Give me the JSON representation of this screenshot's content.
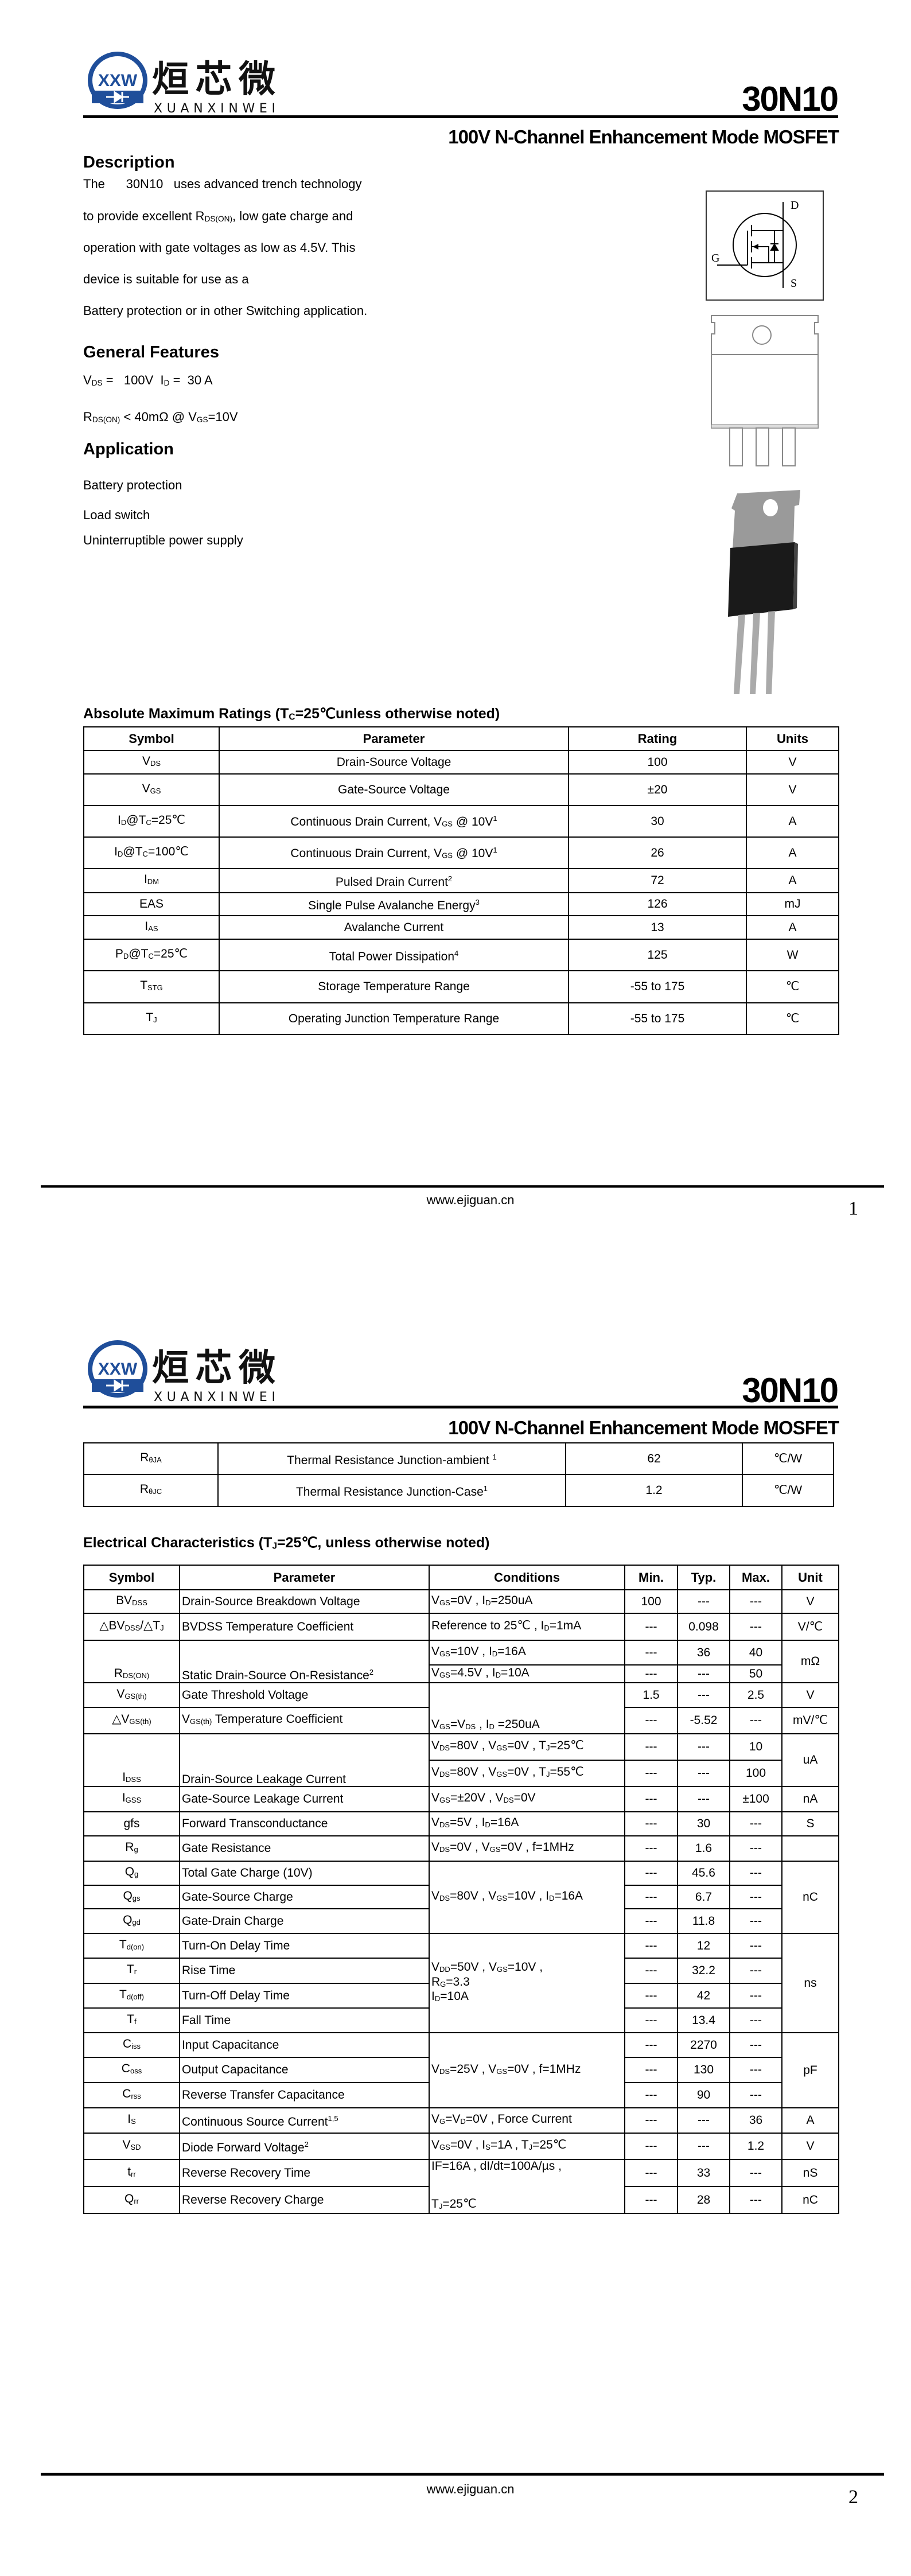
{
  "logo": {
    "mark": "XXW",
    "cn": "烜芯微",
    "en": "XUANXINWEI",
    "ring_color": "#1f4e9a",
    "accent_color": "#5bb030"
  },
  "header": {
    "part_number": "30N10",
    "subtitle": "100V N-Channel Enhancement Mode MOSFET"
  },
  "description": {
    "heading": "Description",
    "lines": [
      "The      30N10   uses advanced trench technology",
      [
        "to provide excellent R",
        {
          "sub": "DS(ON)"
        },
        ", low gate charge and"
      ],
      "operation with gate voltages as low as 4.5V. This",
      "device is suitable for use as a",
      "Battery protection or in other Switching application."
    ]
  },
  "features": {
    "heading": "General Features",
    "lines": [
      [
        "V",
        {
          "sub": "DS"
        },
        " =   100V  I",
        {
          "sub": "D"
        },
        " =  30 A"
      ],
      [
        "R",
        {
          "sub": "DS(ON)"
        },
        " < 40mΩ @ V",
        {
          "sub": "GS"
        },
        "=10V"
      ]
    ]
  },
  "application": {
    "heading": "Application",
    "items": [
      "Battery protection",
      "Load switch",
      "Uninterruptible power supply"
    ]
  },
  "schematic": {
    "drain": "D",
    "gate": "G",
    "source": "S"
  },
  "abs_max": {
    "title": [
      "Absolute Maximum Ratings (T",
      {
        "sub": "C"
      },
      "=25℃unless otherwise noted)"
    ],
    "headers": [
      "Symbol",
      "Parameter",
      "Rating",
      "Units"
    ],
    "rows": [
      [
        [
          "V",
          {
            "sub": "DS"
          }
        ],
        "Drain-Source Voltage",
        "100",
        "V"
      ],
      [
        [
          "V",
          {
            "sub": "GS"
          }
        ],
        "Gate-Source Voltage",
        "±20",
        "V"
      ],
      [
        [
          "I",
          {
            "sub": "D"
          },
          "@T",
          {
            "sub": "C"
          },
          "=25℃"
        ],
        [
          "Continuous Drain Current, V",
          {
            "sub": "GS"
          },
          " @ 10V",
          {
            "sup": "1"
          }
        ],
        "30",
        "A"
      ],
      [
        [
          "I",
          {
            "sub": "D"
          },
          "@T",
          {
            "sub": "C"
          },
          "=100℃"
        ],
        [
          "Continuous Drain Current, V",
          {
            "sub": "GS"
          },
          " @ 10V",
          {
            "sup": "1"
          }
        ],
        "26",
        "A"
      ],
      [
        [
          "I",
          {
            "sub": "DM"
          }
        ],
        [
          "Pulsed Drain Current",
          {
            "sup": "2"
          }
        ],
        "72",
        "A"
      ],
      [
        "EAS",
        [
          "Single Pulse Avalanche Energy",
          {
            "sup": "3"
          }
        ],
        "126",
        "mJ"
      ],
      [
        [
          "I",
          {
            "sub": "AS"
          }
        ],
        "Avalanche Current",
        "13",
        "A"
      ],
      [
        [
          "P",
          {
            "sub": "D"
          },
          "@T",
          {
            "sub": "C"
          },
          "=25℃"
        ],
        [
          "Total Power Dissipation",
          {
            "sup": "4"
          }
        ],
        "125",
        "W"
      ],
      [
        [
          "T",
          {
            "sub": "STG"
          }
        ],
        "Storage Temperature Range",
        "-55 to 175",
        "℃"
      ],
      [
        [
          "T",
          {
            "sub": "J"
          }
        ],
        "Operating Junction Temperature Range",
        "-55 to 175",
        "℃"
      ]
    ]
  },
  "thermal": {
    "rows": [
      [
        [
          "R",
          {
            "sub": "θJA"
          }
        ],
        [
          "Thermal Resistance Junction-ambient ",
          {
            "sup": "1"
          }
        ],
        "62",
        "℃/W"
      ],
      [
        [
          "R",
          {
            "sub": "θJC"
          }
        ],
        [
          "Thermal Resistance Junction-Case",
          {
            "sup": "1"
          }
        ],
        "1.2",
        "℃/W"
      ]
    ]
  },
  "electrical": {
    "title": [
      "Electrical Characteristics (T",
      {
        "sub": "J"
      },
      "=25℃, unless otherwise noted)"
    ],
    "headers": [
      "Symbol",
      "Parameter",
      "Conditions",
      "Min.",
      "Typ.",
      "Max.",
      "Unit"
    ],
    "rows": [
      {
        "sym": [
          "BV",
          {
            "sub": "DSS"
          }
        ],
        "param": "Drain-Source Breakdown Voltage",
        "cond": [
          "V",
          {
            "sub": "GS"
          },
          "=0V , I",
          {
            "sub": "D"
          },
          "=250uA"
        ],
        "min": "100",
        "typ": "---",
        "max": "---",
        "unit": "V"
      },
      {
        "sym": [
          "△BV",
          {
            "sub": "DSS"
          },
          "/△T",
          {
            "sub": "J"
          }
        ],
        "param": "BVDSS Temperature Coefficient",
        "cond": [
          "Reference to 25℃ , I",
          {
            "sub": "D"
          },
          "=1mA"
        ],
        "min": "---",
        "typ": "0.098",
        "max": "---",
        "unit": "V/℃"
      },
      {
        "sym": [
          "R",
          {
            "sub": "DS(ON)"
          }
        ],
        "sym_span": 2,
        "param": [
          "Static Drain-Source On-Resistance",
          {
            "sup": "2"
          }
        ],
        "param_span": 2,
        "cond": [
          "V",
          {
            "sub": "GS"
          },
          "=10V , I",
          {
            "sub": "D"
          },
          "=16A"
        ],
        "min": "---",
        "typ": "36",
        "max": "40",
        "unit": "mΩ",
        "unit_span": 2
      },
      {
        "cond": [
          "V",
          {
            "sub": "GS"
          },
          "=4.5V , I",
          {
            "sub": "D"
          },
          "=10A"
        ],
        "min": "---",
        "typ": "---",
        "max": "50"
      },
      {
        "sym": [
          "V",
          {
            "sub": "GS(th)"
          }
        ],
        "param": "Gate Threshold Voltage",
        "cond": [
          "V",
          {
            "sub": "GS"
          },
          "=V",
          {
            "sub": "DS"
          },
          " , I",
          {
            "sub": "D"
          },
          " =250uA"
        ],
        "cond_span": 2,
        "min": "1.5",
        "typ": "---",
        "max": "2.5",
        "unit": "V"
      },
      {
        "sym": [
          "△V",
          {
            "sub": "GS(th)"
          }
        ],
        "param": [
          "V",
          {
            "sub": "GS(th)"
          },
          " Temperature Coefficient"
        ],
        "min": "---",
        "typ": "-5.52",
        "max": "---",
        "unit": "mV/℃"
      },
      {
        "sym": [
          "I",
          {
            "sub": "DSS"
          }
        ],
        "sym_span": 2,
        "param": "Drain-Source Leakage Current",
        "param_span": 2,
        "cond": [
          "V",
          {
            "sub": "DS"
          },
          "=80V , V",
          {
            "sub": "GS"
          },
          "=0V , T",
          {
            "sub": "J"
          },
          "=25℃"
        ],
        "min": "---",
        "typ": "---",
        "max": "10",
        "unit": "uA",
        "unit_span": 2
      },
      {
        "cond": [
          "V",
          {
            "sub": "DS"
          },
          "=80V , V",
          {
            "sub": "GS"
          },
          "=0V , T",
          {
            "sub": "J"
          },
          "=55℃"
        ],
        "min": "---",
        "typ": "---",
        "max": "100"
      },
      {
        "sym": [
          "I",
          {
            "sub": "GSS"
          }
        ],
        "param": "Gate-Source Leakage Current",
        "cond": [
          "V",
          {
            "sub": "GS"
          },
          "=±20V , V",
          {
            "sub": "DS"
          },
          "=0V"
        ],
        "min": "---",
        "typ": "---",
        "max": "±100",
        "unit": "nA"
      },
      {
        "sym": "gfs",
        "param": "Forward Transconductance",
        "cond": [
          "V",
          {
            "sub": "DS"
          },
          "=5V , I",
          {
            "sub": "D"
          },
          "=16A"
        ],
        "min": "---",
        "typ": "30",
        "max": "---",
        "unit": "S"
      },
      {
        "sym": [
          "R",
          {
            "sub": "g"
          }
        ],
        "param": "Gate Resistance",
        "cond": [
          "V",
          {
            "sub": "DS"
          },
          "=0V , V",
          {
            "sub": "GS"
          },
          "=0V , f=1MHz"
        ],
        "min": "---",
        "typ": "1.6",
        "max": "---",
        "unit": ""
      },
      {
        "sym": [
          "Q",
          {
            "sub": "g"
          }
        ],
        "param": "Total Gate Charge (10V)",
        "cond": [
          "V",
          {
            "sub": "DS"
          },
          "=80V , V",
          {
            "sub": "GS"
          },
          "=10V , I",
          {
            "sub": "D"
          },
          "=16A"
        ],
        "cond_span": 3,
        "min": "---",
        "typ": "45.6",
        "max": "---",
        "unit": "nC",
        "unit_span": 3
      },
      {
        "sym": [
          "Q",
          {
            "sub": "gs"
          }
        ],
        "param": "Gate-Source Charge",
        "min": "---",
        "typ": "6.7",
        "max": "---"
      },
      {
        "sym": [
          "Q",
          {
            "sub": "gd"
          }
        ],
        "param": "Gate-Drain Charge",
        "min": "---",
        "typ": "11.8",
        "max": "---"
      },
      {
        "sym": [
          "T",
          {
            "sub": "d(on)"
          }
        ],
        "param": "Turn-On Delay Time",
        "cond": [
          "V",
          {
            "sub": "DD"
          },
          "=50V , V",
          {
            "sub": "GS"
          },
          "=10V ,\nR",
          {
            "sub": "G"
          },
          "=3.3\nI",
          {
            "sub": "D"
          },
          "=10A"
        ],
        "cond_span": 4,
        "min": "---",
        "typ": "12",
        "max": "---",
        "unit": "ns",
        "unit_span": 4
      },
      {
        "sym": [
          "T",
          {
            "sub": "r"
          }
        ],
        "param": "Rise Time",
        "min": "---",
        "typ": "32.2",
        "max": "---"
      },
      {
        "sym": [
          "T",
          {
            "sub": "d(off)"
          }
        ],
        "param": "Turn-Off Delay Time",
        "min": "---",
        "typ": "42",
        "max": "---"
      },
      {
        "sym": [
          "T",
          {
            "sub": "f"
          }
        ],
        "param": "Fall Time",
        "min": "---",
        "typ": "13.4",
        "max": "---"
      },
      {
        "sym": [
          "C",
          {
            "sub": "iss"
          }
        ],
        "param": "Input Capacitance",
        "cond": [
          "V",
          {
            "sub": "DS"
          },
          "=25V , V",
          {
            "sub": "GS"
          },
          "=0V , f=1MHz"
        ],
        "cond_span": 3,
        "min": "---",
        "typ": "2270",
        "max": "---",
        "unit": "pF",
        "unit_span": 3
      },
      {
        "sym": [
          "C",
          {
            "sub": "oss"
          }
        ],
        "param": "Output Capacitance",
        "min": "---",
        "typ": "130",
        "max": "---"
      },
      {
        "sym": [
          "C",
          {
            "sub": "rss"
          }
        ],
        "param": "Reverse Transfer Capacitance",
        "min": "---",
        "typ": "90",
        "max": "---"
      },
      {
        "sym": [
          "I",
          {
            "sub": "S"
          }
        ],
        "param": [
          "Continuous Source Current",
          {
            "sup": "1,5"
          }
        ],
        "cond": [
          "V",
          {
            "sub": "G"
          },
          "=V",
          {
            "sub": "D"
          },
          "=0V , Force Current"
        ],
        "min": "---",
        "typ": "---",
        "max": "36",
        "unit": "A"
      },
      {
        "sym": [
          "V",
          {
            "sub": "SD"
          }
        ],
        "param": [
          "Diode Forward Voltage",
          {
            "sup": "2"
          }
        ],
        "cond": [
          "V",
          {
            "sub": "GS"
          },
          "=0V , I",
          {
            "sub": "S"
          },
          "=1A , T",
          {
            "sub": "J"
          },
          "=25℃"
        ],
        "min": "---",
        "typ": "---",
        "max": "1.2",
        "unit": "V"
      },
      {
        "sym": [
          "t",
          {
            "sub": "rr"
          }
        ],
        "param": "Reverse Recovery Time",
        "cond": [
          "IF=16A , dI/dt=100A/µs ,\n\n\nT",
          {
            "sub": "J"
          },
          "=25℃"
        ],
        "cond_span": 2,
        "min": "---",
        "typ": "33",
        "max": "---",
        "unit": "nS"
      },
      {
        "sym": [
          "Q",
          {
            "sub": "rr"
          }
        ],
        "param": "Reverse Recovery Charge",
        "min": "---",
        "typ": "28",
        "max": "---",
        "unit": "nC"
      }
    ]
  },
  "footer": {
    "url": "www.ejiguan.cn",
    "page1": "1",
    "page2": "2"
  }
}
